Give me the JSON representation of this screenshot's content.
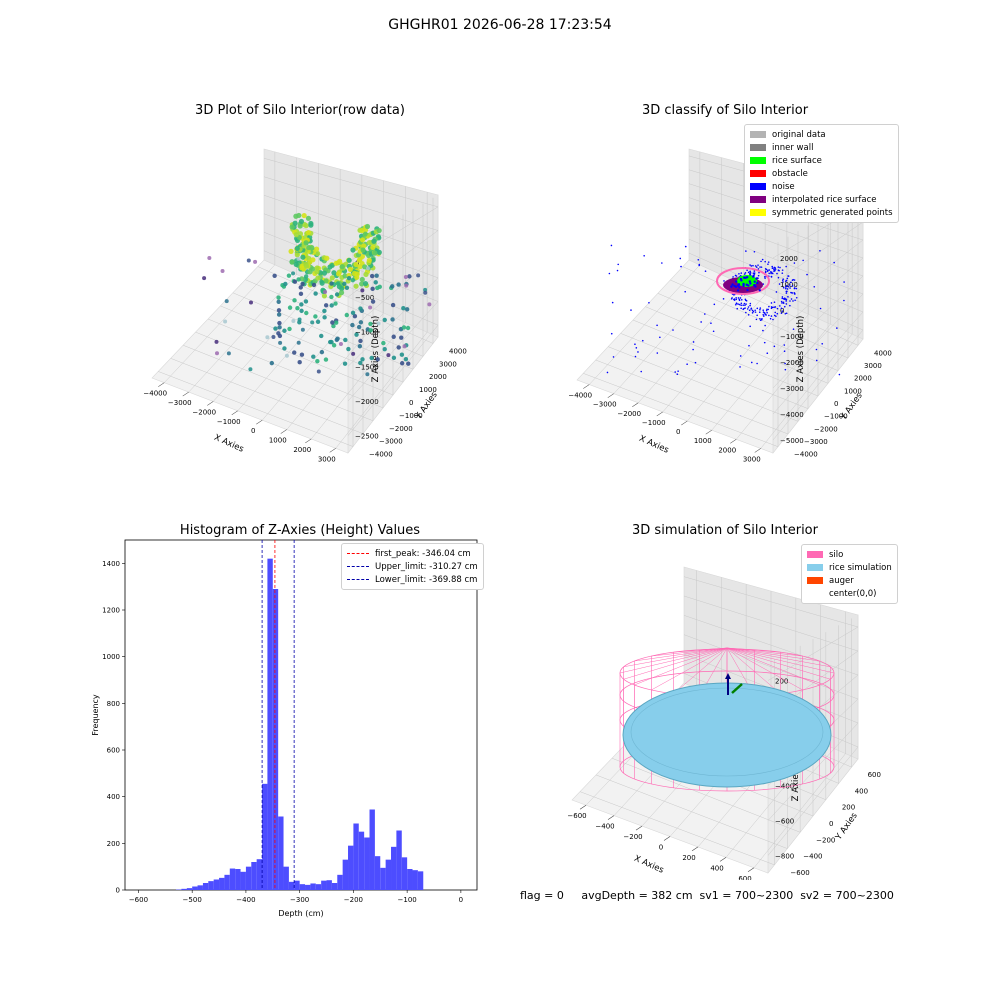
{
  "suptitle": "GHGHR01 2026-06-28 17:23:54",
  "panel1": {
    "title": "3D Plot of Silo Interior(row data)",
    "xlabel": "X Axies",
    "ylabel": "Y Axies",
    "zlabel": "Z Axies (Depth)",
    "xticks": [
      "−4000",
      "−3000",
      "−2000",
      "−1000",
      "0",
      "1000",
      "2000",
      "3000"
    ],
    "yticks": [
      "4000",
      "3000",
      "2000",
      "1000",
      "0",
      "−1000",
      "−2000",
      "−3000",
      "−4000"
    ],
    "zticks": [
      "0",
      "−500",
      "−1000",
      "−1500",
      "−2000",
      "−2500"
    ]
  },
  "panel2": {
    "title": "3D classify of Silo Interior",
    "xlabel": "X Axies",
    "ylabel": "Y Axies",
    "zlabel": "Z Axies (Depth)",
    "xticks": [
      "−4000",
      "−3000",
      "−2000",
      "−1000",
      "0",
      "1000",
      "2000",
      "3000"
    ],
    "yticks": [
      "4000",
      "3000",
      "2000",
      "1000",
      "0",
      "−1000",
      "−2000",
      "−3000",
      "−4000"
    ],
    "zticks": [
      "2000",
      "1000",
      "0",
      "−1000",
      "−2000",
      "−3000",
      "−4000",
      "−5000"
    ],
    "legend": [
      {
        "label": "original data",
        "color": "#b3b3b3"
      },
      {
        "label": "inner wall",
        "color": "#808080"
      },
      {
        "label": "rice surface",
        "color": "#00ff00"
      },
      {
        "label": "obstacle",
        "color": "#ff0000"
      },
      {
        "label": "noise",
        "color": "#0000ff"
      },
      {
        "label": "interpolated rice surface",
        "color": "#800080"
      },
      {
        "label": "symmetric generated points",
        "color": "#ffff00"
      }
    ]
  },
  "panel3": {
    "title": "Histogram of Z-Axies (Height) Values",
    "legend": [
      {
        "label": "first_peak: -346.04 cm",
        "color": "#ff0000"
      },
      {
        "label": "Upper_limit: -310.27 cm",
        "color": "#0000aa"
      },
      {
        "label": "Lower_limit: -369.88 cm",
        "color": "#0000aa"
      }
    ]
  },
  "panel4": {
    "title": "3D simulation of Silo Interior",
    "xlabel": "X Axies",
    "ylabel": "Y Axies",
    "zlabel": "Z Axies (Depth)",
    "xticks": [
      "−600",
      "−400",
      "−200",
      "0",
      "200",
      "400",
      "600"
    ],
    "yticks": [
      "600",
      "400",
      "200",
      "0",
      "−200",
      "−400",
      "−600"
    ],
    "zticks": [
      "200",
      "0",
      "−200",
      "−400",
      "−600",
      "−800"
    ],
    "legend": [
      {
        "label": "silo",
        "color": "#ff69b4"
      },
      {
        "label": "rice simulation",
        "color": "#87ceeb"
      },
      {
        "label": "auger",
        "color": "#ff4500"
      },
      {
        "label": "center(0,0)",
        "color": "#ffffff"
      }
    ]
  },
  "status": "flag = 0     avgDepth = 382 cm  sv1 = 700~2300  sv2 = 700~2300",
  "chart_data": [
    {
      "type": "scatter",
      "title": "3D Plot of Silo Interior(row data)",
      "xlabel": "X Axies",
      "ylabel": "Y Axies",
      "zlabel": "Z Axies (Depth)",
      "xlim": [
        -4000,
        3000
      ],
      "ylim": [
        -4000,
        4000
      ],
      "zlim": [
        -2700,
        100
      ]
    },
    {
      "type": "scatter",
      "title": "3D classify of Silo Interior",
      "xlabel": "X Axies",
      "ylabel": "Y Axies",
      "zlabel": "Z Axies (Depth)",
      "xlim": [
        -4000,
        3000
      ],
      "ylim": [
        -4000,
        4000
      ],
      "zlim": [
        -5000,
        2000
      ],
      "series": [
        {
          "name": "original data"
        },
        {
          "name": "inner wall"
        },
        {
          "name": "rice surface"
        },
        {
          "name": "obstacle"
        },
        {
          "name": "noise"
        },
        {
          "name": "interpolated rice surface"
        },
        {
          "name": "symmetric generated points"
        }
      ]
    },
    {
      "type": "bar",
      "title": "Histogram of Z-Axies (Height) Values",
      "xlabel": "Depth (cm)",
      "ylabel": "Frequency",
      "xlim": [
        -625,
        30
      ],
      "ylim": [
        0,
        1500
      ],
      "xticks": [
        -600,
        -500,
        -400,
        -300,
        -200,
        -100,
        0
      ],
      "yticks": [
        0,
        200,
        400,
        600,
        800,
        1000,
        1200,
        1400
      ],
      "bin_width": 10,
      "x": [
        -600,
        -590,
        -580,
        -570,
        -560,
        -550,
        -540,
        -530,
        -520,
        -510,
        -500,
        -490,
        -480,
        -470,
        -460,
        -450,
        -440,
        -430,
        -420,
        -410,
        -400,
        -390,
        -380,
        -370,
        -360,
        -350,
        -340,
        -330,
        -320,
        -310,
        -300,
        -290,
        -280,
        -270,
        -260,
        -250,
        -240,
        -230,
        -220,
        -210,
        -200,
        -190,
        -180,
        -170,
        -160,
        -150,
        -140,
        -130,
        -120,
        -110,
        -100,
        -90,
        -80,
        -70,
        -60,
        -50,
        -40,
        -30,
        -20,
        -10
      ],
      "values": [
        0,
        0,
        0,
        0,
        0,
        0,
        0,
        2,
        5,
        8,
        15,
        20,
        30,
        38,
        45,
        52,
        65,
        92,
        90,
        78,
        100,
        120,
        132,
        455,
        1420,
        1290,
        315,
        100,
        35,
        40,
        25,
        22,
        28,
        25,
        40,
        42,
        30,
        65,
        130,
        190,
        285,
        250,
        225,
        345,
        145,
        95,
        130,
        185,
        255,
        140,
        90,
        85,
        80,
        0,
        0,
        0,
        0,
        0,
        0,
        0
      ],
      "lines": [
        {
          "name": "first_peak: -346.04 cm",
          "x": -346.04,
          "color": "#ff0000"
        },
        {
          "name": "Upper_limit: -310.27 cm",
          "x": -310.27,
          "color": "#0000aa"
        },
        {
          "name": "Lower_limit: -369.88 cm",
          "x": -369.88,
          "color": "#0000aa"
        }
      ]
    },
    {
      "type": "scatter",
      "title": "3D simulation of Silo Interior",
      "xlabel": "X Axies",
      "ylabel": "Y Axies",
      "zlabel": "Z Axies (Depth)",
      "xlim": [
        -700,
        700
      ],
      "ylim": [
        -700,
        700
      ],
      "zlim": [
        -900,
        500
      ],
      "series": [
        {
          "name": "silo"
        },
        {
          "name": "rice simulation"
        },
        {
          "name": "auger"
        },
        {
          "name": "center(0,0)"
        }
      ]
    }
  ]
}
